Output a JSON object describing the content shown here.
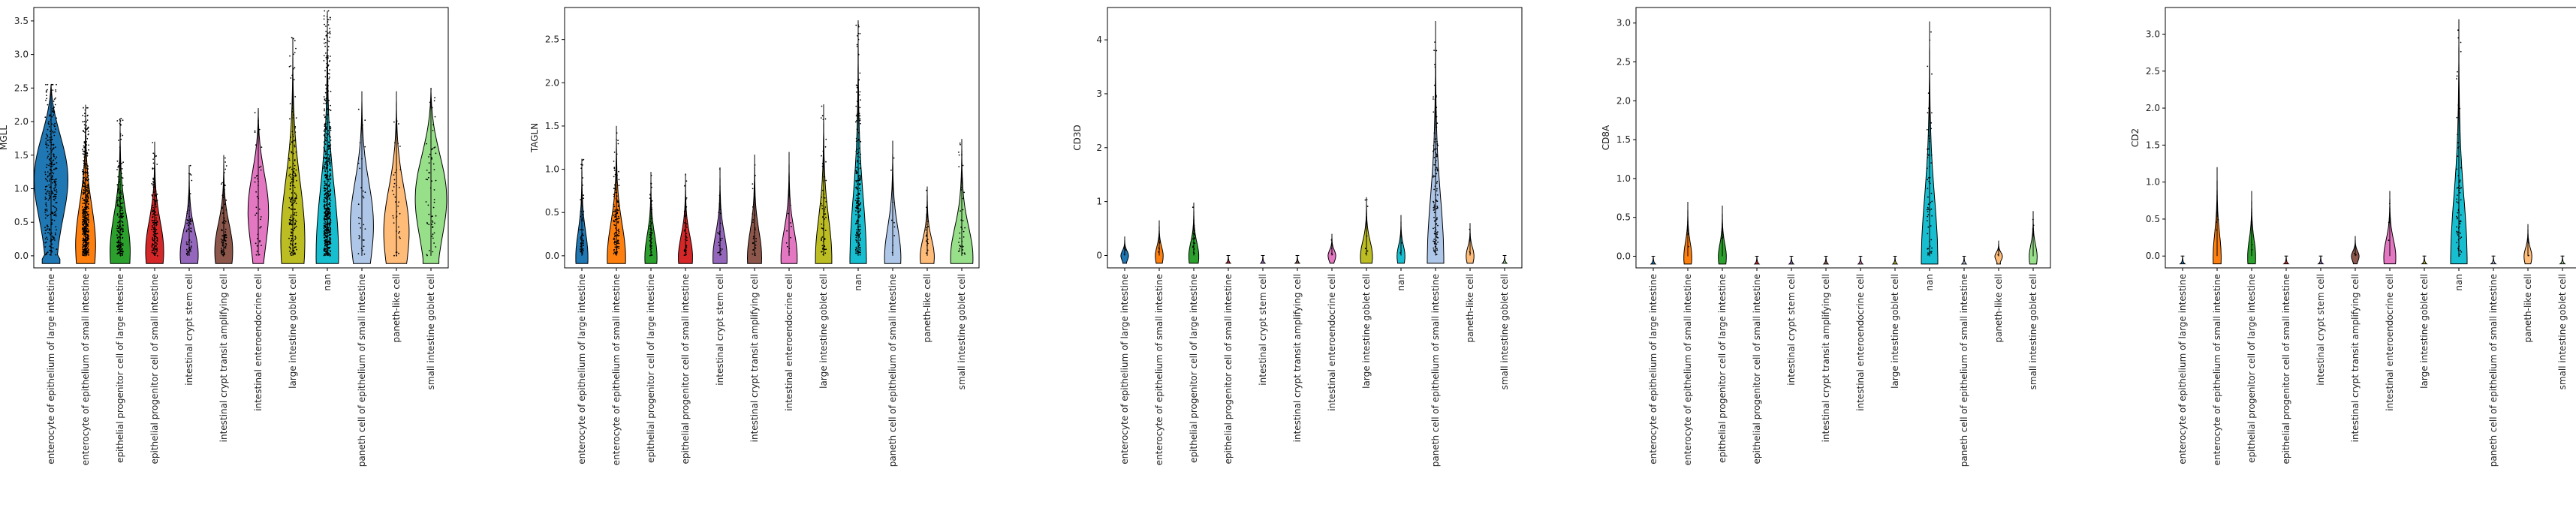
{
  "chart_data": [
    {
      "type": "violin",
      "ylabel": "MGLL",
      "yticks": [
        0.0,
        0.5,
        1.0,
        1.5,
        2.0,
        2.5,
        3.0,
        3.5
      ],
      "ylim": [
        -0.18,
        3.7
      ],
      "categories": [
        "enterocyte of epithelium of large intestine",
        "enterocyte of epithelium of small intestine",
        "epithelial progenitor cell of large intestine",
        "epithelial progenitor cell of small intestine",
        "intestinal crypt stem cell",
        "intestinal crypt transit amplifying cell",
        "intestinal enteroendocrine cell",
        "large intestine goblet cell",
        "nan",
        "paneth cell of epithelium of small intestine",
        "paneth-like cell",
        "small intestine goblet cell"
      ],
      "colors": [
        "#1f77b4",
        "#ff7f0e",
        "#2ca02c",
        "#d62728",
        "#9467bd",
        "#8c564b",
        "#e377c2",
        "#bcbd22",
        "#17becf",
        "#aec7e8",
        "#ffbb78",
        "#98df8a"
      ],
      "max": [
        2.55,
        2.25,
        2.05,
        1.7,
        1.35,
        1.5,
        2.2,
        3.25,
        3.65,
        2.45,
        2.45,
        2.5
      ],
      "width": [
        0.95,
        0.5,
        0.5,
        0.45,
        0.45,
        0.45,
        0.55,
        0.6,
        0.55,
        0.6,
        0.65,
        0.85
      ],
      "mode": [
        1.2,
        0.2,
        0.1,
        0.1,
        0.05,
        0.1,
        0.7,
        0.3,
        0.1,
        0.5,
        0.4,
        0.9
      ],
      "points": [
        300,
        500,
        200,
        150,
        60,
        80,
        40,
        200,
        600,
        30,
        40,
        60
      ]
    },
    {
      "type": "violin",
      "ylabel": "TAGLN",
      "yticks": [
        0.0,
        0.5,
        1.0,
        1.5,
        2.0,
        2.5
      ],
      "ylim": [
        -0.14,
        2.87
      ],
      "categories": [
        "enterocyte of epithelium of large intestine",
        "enterocyte of epithelium of small intestine",
        "epithelial progenitor cell of large intestine",
        "epithelial progenitor cell of small intestine",
        "intestinal crypt stem cell",
        "intestinal crypt transit amplifying cell",
        "intestinal enteroendocrine cell",
        "large intestine goblet cell",
        "nan",
        "paneth cell of epithelium of small intestine",
        "paneth-like cell",
        "small intestine goblet cell"
      ],
      "colors": [
        "#1f77b4",
        "#ff7f0e",
        "#2ca02c",
        "#d62728",
        "#9467bd",
        "#8c564b",
        "#e377c2",
        "#bcbd22",
        "#17becf",
        "#aec7e8",
        "#ffbb78",
        "#98df8a"
      ],
      "max": [
        1.12,
        1.5,
        0.97,
        0.95,
        1.02,
        1.17,
        1.2,
        1.75,
        2.72,
        1.33,
        0.8,
        1.35
      ],
      "width": [
        0.3,
        0.45,
        0.3,
        0.35,
        0.35,
        0.35,
        0.4,
        0.4,
        0.4,
        0.4,
        0.35,
        0.55
      ],
      "mode": [
        0,
        0,
        0,
        0,
        0,
        0,
        0,
        0,
        0,
        0,
        0,
        0
      ],
      "points": [
        60,
        120,
        60,
        40,
        25,
        30,
        10,
        60,
        200,
        10,
        20,
        40
      ]
    },
    {
      "type": "violin",
      "ylabel": "CD3D",
      "yticks": [
        0,
        1,
        2,
        3,
        4
      ],
      "ylim": [
        -0.23,
        4.6
      ],
      "categories": [
        "enterocyte of epithelium of large intestine",
        "enterocyte of epithelium of small intestine",
        "epithelial progenitor cell of large intestine",
        "epithelial progenitor cell of small intestine",
        "intestinal crypt stem cell",
        "intestinal crypt transit amplifying cell",
        "intestinal enteroendocrine cell",
        "large intestine goblet cell",
        "nan",
        "paneth cell of epithelium of small intestine",
        "paneth-like cell",
        "small intestine goblet cell"
      ],
      "colors": [
        "#1f77b4",
        "#ff7f0e",
        "#2ca02c",
        "#d62728",
        "#9467bd",
        "#8c564b",
        "#e377c2",
        "#bcbd22",
        "#17becf",
        "#aec7e8",
        "#ffbb78",
        "#98df8a"
      ],
      "max": [
        0.35,
        0.65,
        0.98,
        0,
        0,
        0,
        0.4,
        1.08,
        0.75,
        4.35,
        0.6,
        0
      ],
      "width": [
        0.2,
        0.2,
        0.25,
        0.15,
        0.15,
        0.15,
        0.2,
        0.3,
        0.2,
        0.4,
        0.2,
        0.15
      ],
      "mode": [
        0,
        0,
        0,
        0,
        0,
        0,
        0,
        0,
        0,
        0,
        0,
        0
      ],
      "points": [
        3,
        5,
        20,
        0,
        0,
        0,
        4,
        8,
        3,
        120,
        3,
        0
      ]
    },
    {
      "type": "violin",
      "ylabel": "CD8A",
      "yticks": [
        0.0,
        0.5,
        1.0,
        1.5,
        2.0,
        2.5,
        3.0
      ],
      "ylim": [
        -0.15,
        3.2
      ],
      "categories": [
        "enterocyte of epithelium of large intestine",
        "enterocyte of epithelium of small intestine",
        "epithelial progenitor cell of large intestine",
        "epithelial progenitor cell of small intestine",
        "intestinal crypt stem cell",
        "intestinal crypt transit amplifying cell",
        "intestinal enteroendocrine cell",
        "large intestine goblet cell",
        "nan",
        "paneth cell of epithelium of small intestine",
        "paneth-like cell",
        "small intestine goblet cell"
      ],
      "colors": [
        "#1f77b4",
        "#ff7f0e",
        "#2ca02c",
        "#d62728",
        "#9467bd",
        "#8c564b",
        "#e377c2",
        "#bcbd22",
        "#17becf",
        "#aec7e8",
        "#ffbb78",
        "#98df8a"
      ],
      "max": [
        0,
        0.7,
        0.65,
        0,
        0,
        0,
        0,
        0,
        3.02,
        0,
        0.2,
        0.58
      ],
      "width": [
        0.15,
        0.2,
        0.2,
        0.15,
        0.15,
        0.15,
        0.15,
        0.15,
        0.4,
        0.15,
        0.2,
        0.2
      ],
      "mode": [
        0,
        0,
        0,
        0,
        0,
        0,
        0,
        0,
        0,
        0,
        0,
        0
      ],
      "points": [
        0,
        3,
        2,
        0,
        0,
        0,
        0,
        0,
        60,
        0,
        2,
        3
      ]
    },
    {
      "type": "violin",
      "ylabel": "CD2",
      "yticks": [
        0.0,
        0.5,
        1.0,
        1.5,
        2.0,
        2.5,
        3.0
      ],
      "ylim": [
        -0.16,
        3.36
      ],
      "categories": [
        "enterocyte of epithelium of large intestine",
        "enterocyte of epithelium of small intestine",
        "epithelial progenitor cell of large intestine",
        "epithelial progenitor cell of small intestine",
        "intestinal crypt stem cell",
        "intestinal crypt transit amplifying cell",
        "intestinal enteroendocrine cell",
        "large intestine goblet cell",
        "nan",
        "paneth cell of epithelium of small intestine",
        "paneth-like cell",
        "small intestine goblet cell"
      ],
      "colors": [
        "#1f77b4",
        "#ff7f0e",
        "#2ca02c",
        "#d62728",
        "#9467bd",
        "#8c564b",
        "#e377c2",
        "#bcbd22",
        "#17becf",
        "#aec7e8",
        "#ffbb78",
        "#98df8a"
      ],
      "max": [
        0,
        1.2,
        0.88,
        0,
        0,
        0.27,
        0.88,
        0,
        3.2,
        0,
        0.43,
        0
      ],
      "width": [
        0.15,
        0.2,
        0.2,
        0.15,
        0.15,
        0.2,
        0.3,
        0.15,
        0.4,
        0.15,
        0.2,
        0.15
      ],
      "mode": [
        0,
        0,
        0,
        0,
        0,
        0,
        0,
        0,
        0,
        0,
        0,
        0
      ],
      "points": [
        0,
        4,
        3,
        0,
        0,
        2,
        3,
        0,
        70,
        0,
        2,
        0
      ]
    }
  ]
}
